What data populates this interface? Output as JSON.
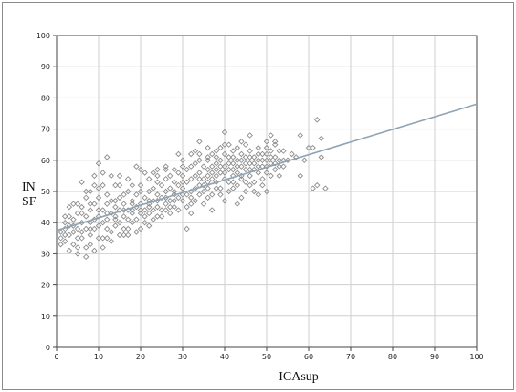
{
  "chart_data": {
    "type": "scatter",
    "title": "",
    "xlabel": "ICAsup",
    "ylabel_lines": [
      "IN",
      "SF"
    ],
    "xlim": [
      0,
      100
    ],
    "ylim": [
      0,
      100
    ],
    "xticks": [
      0,
      10,
      20,
      30,
      40,
      50,
      60,
      70,
      80,
      90,
      100
    ],
    "yticks": [
      0,
      10,
      20,
      30,
      40,
      50,
      60,
      70,
      80,
      90,
      100
    ],
    "grid": true,
    "colors": {
      "points": "#8c8c8c",
      "trend": "#8fa3b4",
      "grid": "#cfcfcf",
      "axis": "#444444"
    },
    "regression": {
      "x": [
        0,
        100
      ],
      "y": [
        37.5,
        78
      ]
    },
    "points": [
      [
        1,
        35
      ],
      [
        1,
        33
      ],
      [
        2,
        38
      ],
      [
        2,
        34
      ],
      [
        2,
        40
      ],
      [
        3,
        36
      ],
      [
        3,
        39
      ],
      [
        3,
        42
      ],
      [
        4,
        37
      ],
      [
        4,
        33
      ],
      [
        4,
        41
      ],
      [
        5,
        43
      ],
      [
        5,
        38
      ],
      [
        5,
        35
      ],
      [
        5,
        32
      ],
      [
        6,
        45
      ],
      [
        6,
        40
      ],
      [
        6,
        37
      ],
      [
        6,
        53
      ],
      [
        7,
        42
      ],
      [
        7,
        38
      ],
      [
        7,
        48
      ],
      [
        7,
        32
      ],
      [
        7,
        29
      ],
      [
        8,
        44
      ],
      [
        8,
        40
      ],
      [
        8,
        36
      ],
      [
        8,
        50
      ],
      [
        9,
        46
      ],
      [
        9,
        41
      ],
      [
        9,
        38
      ],
      [
        9,
        31
      ],
      [
        9,
        55
      ],
      [
        10,
        42
      ],
      [
        10,
        39
      ],
      [
        10,
        35
      ],
      [
        10,
        59
      ],
      [
        10,
        48
      ],
      [
        11,
        44
      ],
      [
        11,
        40
      ],
      [
        11,
        32
      ],
      [
        11,
        52
      ],
      [
        12,
        46
      ],
      [
        12,
        41
      ],
      [
        12,
        38
      ],
      [
        12,
        61
      ],
      [
        13,
        47
      ],
      [
        13,
        43
      ],
      [
        13,
        37
      ],
      [
        14,
        45
      ],
      [
        14,
        41
      ],
      [
        14,
        39
      ],
      [
        15,
        48
      ],
      [
        15,
        44
      ],
      [
        15,
        40
      ],
      [
        15,
        52
      ],
      [
        16,
        46
      ],
      [
        16,
        42
      ],
      [
        16,
        38
      ],
      [
        17,
        50
      ],
      [
        17,
        44
      ],
      [
        17,
        41
      ],
      [
        17,
        36
      ],
      [
        18,
        47
      ],
      [
        18,
        43
      ],
      [
        18,
        40
      ],
      [
        19,
        49
      ],
      [
        19,
        45
      ],
      [
        19,
        41
      ],
      [
        20,
        52
      ],
      [
        20,
        46
      ],
      [
        20,
        43
      ],
      [
        20,
        57
      ],
      [
        21,
        48
      ],
      [
        21,
        44
      ],
      [
        21,
        42
      ],
      [
        22,
        50
      ],
      [
        22,
        46
      ],
      [
        22,
        43
      ],
      [
        22,
        39
      ],
      [
        23,
        51
      ],
      [
        23,
        47
      ],
      [
        23,
        44
      ],
      [
        24,
        53
      ],
      [
        24,
        49
      ],
      [
        24,
        45
      ],
      [
        24,
        57
      ],
      [
        25,
        52
      ],
      [
        25,
        48
      ],
      [
        25,
        44
      ],
      [
        26,
        54
      ],
      [
        26,
        50
      ],
      [
        26,
        46
      ],
      [
        27,
        55
      ],
      [
        27,
        51
      ],
      [
        27,
        47
      ],
      [
        27,
        43
      ],
      [
        28,
        53
      ],
      [
        28,
        49
      ],
      [
        28,
        45
      ],
      [
        29,
        56
      ],
      [
        29,
        52
      ],
      [
        29,
        48
      ],
      [
        30,
        55
      ],
      [
        30,
        51
      ],
      [
        30,
        47
      ],
      [
        30,
        58
      ],
      [
        31,
        57
      ],
      [
        31,
        53
      ],
      [
        31,
        49
      ],
      [
        31,
        38
      ],
      [
        32,
        58
      ],
      [
        32,
        54
      ],
      [
        32,
        50
      ],
      [
        32,
        46
      ],
      [
        33,
        59
      ],
      [
        33,
        55
      ],
      [
        33,
        51
      ],
      [
        34,
        60
      ],
      [
        34,
        56
      ],
      [
        34,
        52
      ],
      [
        34,
        66
      ],
      [
        35,
        58
      ],
      [
        35,
        54
      ],
      [
        35,
        50
      ],
      [
        36,
        61
      ],
      [
        36,
        57
      ],
      [
        36,
        53
      ],
      [
        36,
        48
      ],
      [
        37,
        62
      ],
      [
        37,
        58
      ],
      [
        37,
        54
      ],
      [
        37,
        44
      ],
      [
        38,
        63
      ],
      [
        38,
        59
      ],
      [
        38,
        55
      ],
      [
        38,
        51
      ],
      [
        39,
        64
      ],
      [
        39,
        60
      ],
      [
        39,
        56
      ],
      [
        39,
        49
      ],
      [
        40,
        62
      ],
      [
        40,
        58
      ],
      [
        40,
        54
      ],
      [
        40,
        69
      ],
      [
        41,
        61
      ],
      [
        41,
        57
      ],
      [
        41,
        53
      ],
      [
        42,
        63
      ],
      [
        42,
        59
      ],
      [
        42,
        55
      ],
      [
        42,
        51
      ],
      [
        43,
        64
      ],
      [
        43,
        60
      ],
      [
        43,
        56
      ],
      [
        43,
        46
      ],
      [
        44,
        62
      ],
      [
        44,
        58
      ],
      [
        44,
        54
      ],
      [
        45,
        65
      ],
      [
        45,
        61
      ],
      [
        45,
        57
      ],
      [
        45,
        53
      ],
      [
        46,
        63
      ],
      [
        46,
        59
      ],
      [
        46,
        55
      ],
      [
        47,
        61
      ],
      [
        47,
        57
      ],
      [
        47,
        50
      ],
      [
        48,
        64
      ],
      [
        48,
        60
      ],
      [
        48,
        56
      ],
      [
        49,
        62
      ],
      [
        49,
        58
      ],
      [
        49,
        54
      ],
      [
        50,
        66
      ],
      [
        50,
        62
      ],
      [
        50,
        58
      ],
      [
        50,
        50
      ],
      [
        51,
        68
      ],
      [
        51,
        63
      ],
      [
        51,
        59
      ],
      [
        52,
        65
      ],
      [
        52,
        61
      ],
      [
        52,
        57
      ],
      [
        53,
        63
      ],
      [
        53,
        55
      ],
      [
        54,
        60
      ],
      [
        54,
        58
      ],
      [
        56,
        62
      ],
      [
        58,
        68
      ],
      [
        61,
        64
      ],
      [
        61,
        51
      ],
      [
        62,
        73
      ],
      [
        62,
        52
      ],
      [
        63,
        67
      ],
      [
        63,
        61
      ],
      [
        64,
        51
      ],
      [
        46,
        68
      ],
      [
        44,
        66
      ],
      [
        41,
        65
      ],
      [
        36,
        64
      ],
      [
        33,
        63
      ],
      [
        29,
        62
      ],
      [
        26,
        58
      ],
      [
        23,
        56
      ],
      [
        21,
        56
      ],
      [
        19,
        58
      ],
      [
        17,
        54
      ],
      [
        15,
        55
      ],
      [
        13,
        55
      ],
      [
        11,
        56
      ],
      [
        9,
        52
      ],
      [
        7,
        50
      ],
      [
        5,
        46
      ],
      [
        3,
        45
      ],
      [
        2,
        42
      ],
      [
        1,
        37
      ],
      [
        4,
        46
      ],
      [
        6,
        43
      ],
      [
        8,
        46
      ],
      [
        10,
        51
      ],
      [
        12,
        49
      ],
      [
        14,
        52
      ],
      [
        16,
        49
      ],
      [
        18,
        52
      ],
      [
        20,
        50
      ],
      [
        22,
        54
      ],
      [
        24,
        55
      ],
      [
        26,
        57
      ],
      [
        28,
        57
      ],
      [
        30,
        60
      ],
      [
        32,
        62
      ],
      [
        34,
        62
      ],
      [
        36,
        60
      ],
      [
        38,
        61
      ],
      [
        40,
        65
      ],
      [
        42,
        61
      ],
      [
        44,
        60
      ],
      [
        46,
        61
      ],
      [
        48,
        62
      ],
      [
        50,
        64
      ],
      [
        52,
        66
      ],
      [
        55,
        60
      ],
      [
        3,
        31
      ],
      [
        5,
        30
      ],
      [
        8,
        33
      ],
      [
        11,
        35
      ],
      [
        13,
        34
      ],
      [
        15,
        36
      ],
      [
        17,
        38
      ],
      [
        19,
        37
      ],
      [
        21,
        40
      ],
      [
        23,
        41
      ],
      [
        25,
        42
      ],
      [
        27,
        45
      ],
      [
        29,
        44
      ],
      [
        31,
        45
      ],
      [
        33,
        47
      ],
      [
        35,
        46
      ],
      [
        37,
        49
      ],
      [
        39,
        51
      ],
      [
        41,
        50
      ],
      [
        43,
        52
      ],
      [
        45,
        50
      ],
      [
        47,
        53
      ],
      [
        49,
        52
      ],
      [
        51,
        55
      ],
      [
        53,
        58
      ],
      [
        14,
        47
      ],
      [
        18,
        44
      ],
      [
        22,
        47
      ],
      [
        26,
        48
      ],
      [
        30,
        53
      ],
      [
        34,
        54
      ],
      [
        38,
        57
      ],
      [
        42,
        57
      ],
      [
        46,
        57
      ],
      [
        50,
        60
      ],
      [
        54,
        63
      ],
      [
        57,
        61
      ],
      [
        59,
        60
      ],
      [
        60,
        64
      ],
      [
        58,
        55
      ],
      [
        48,
        49
      ],
      [
        44,
        48
      ],
      [
        40,
        47
      ],
      [
        36,
        51
      ],
      [
        32,
        43
      ],
      [
        28,
        47
      ],
      [
        24,
        42
      ],
      [
        20,
        38
      ],
      [
        16,
        36
      ],
      [
        12,
        35
      ],
      [
        8,
        38
      ],
      [
        6,
        35
      ],
      [
        4,
        39
      ],
      [
        2,
        36
      ],
      [
        10,
        44
      ],
      [
        12,
        43
      ],
      [
        14,
        42
      ],
      [
        16,
        44
      ],
      [
        18,
        46
      ],
      [
        20,
        44
      ],
      [
        22,
        45
      ],
      [
        24,
        47
      ],
      [
        26,
        44
      ],
      [
        28,
        50
      ],
      [
        30,
        49
      ],
      [
        32,
        48
      ],
      [
        34,
        49
      ],
      [
        36,
        55
      ],
      [
        38,
        53
      ],
      [
        40,
        56
      ],
      [
        42,
        53
      ],
      [
        44,
        55
      ],
      [
        46,
        52
      ],
      [
        48,
        58
      ],
      [
        50,
        56
      ],
      [
        52,
        59
      ],
      [
        35,
        52
      ],
      [
        37,
        56
      ],
      [
        39,
        58
      ],
      [
        41,
        59
      ],
      [
        43,
        58
      ],
      [
        45,
        59
      ],
      [
        47,
        59
      ],
      [
        49,
        60
      ],
      [
        51,
        61
      ],
      [
        53,
        60
      ]
    ]
  }
}
